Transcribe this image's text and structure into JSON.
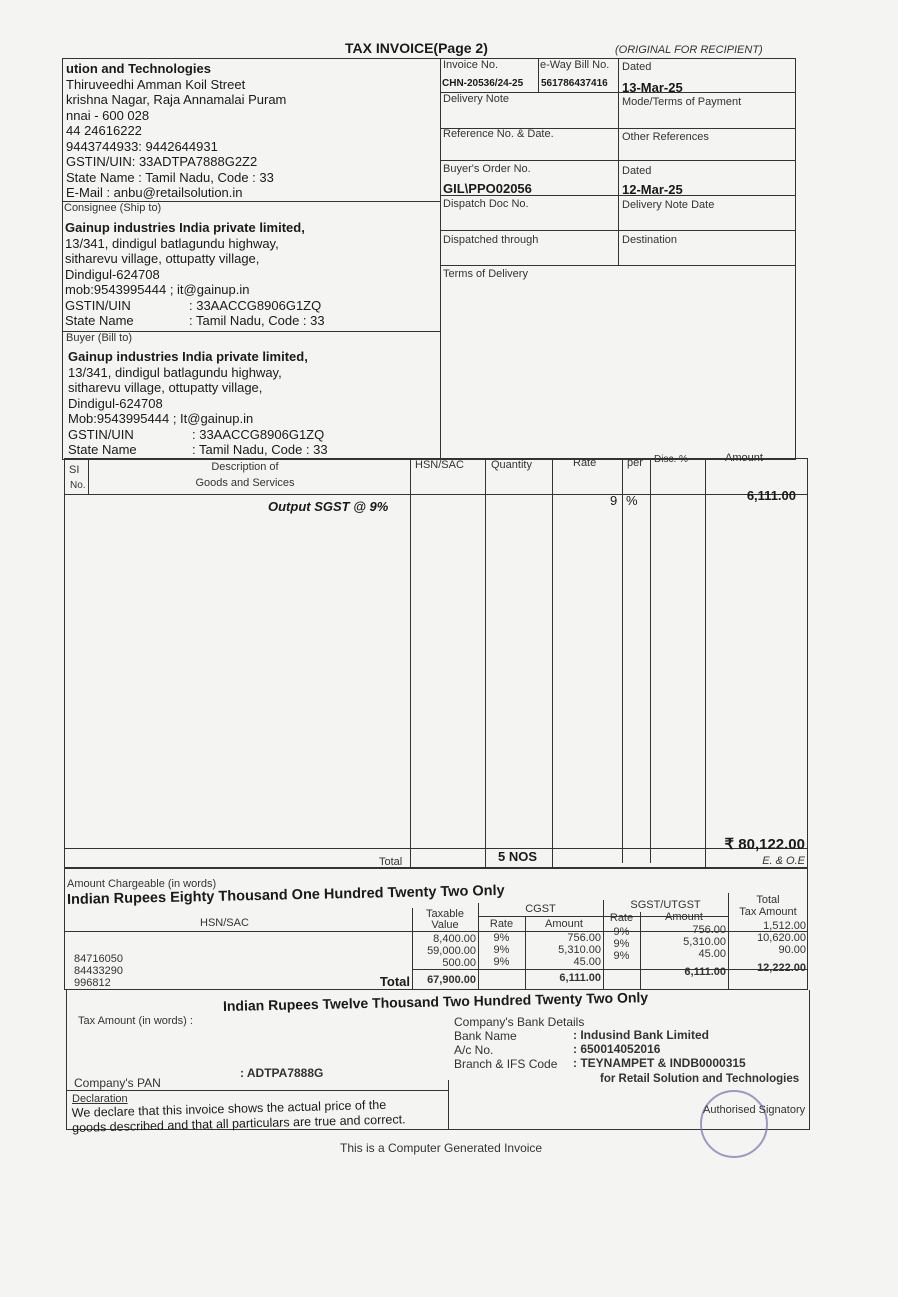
{
  "title": "TAX INVOICE(Page  2)",
  "copy_label": "(ORIGINAL FOR RECIPIENT)",
  "seller": {
    "lines": [
      "ution and Technologies",
      "Thiruveedhi Amman Koil Street",
      "krishna Nagar, Raja Annamalai Puram",
      "nnai - 600 028",
      "44 24616222",
      "9443744933: 9442644931",
      "GSTIN/UIN: 33ADTPA7888G2Z2",
      "State Name :  Tamil Nadu, Code : 33",
      "E-Mail : anbu@retailsolution.in"
    ]
  },
  "meta": {
    "invoice_no_label": "Invoice No.",
    "invoice_no": "CHN-20536/24-25",
    "eway_label": "e-Way Bill No.",
    "eway": "561786437416",
    "dated_label": "Dated",
    "dated": "13-Mar-25",
    "delivery_note_label": "Delivery Note",
    "mode_label": "Mode/Terms of Payment",
    "reference_label": "Reference No. & Date.",
    "other_ref_label": "Other References",
    "buyer_order_label": "Buyer's Order No.",
    "buyer_order": "GIL\\PPO02056",
    "order_dated_label": "Dated",
    "order_dated": "12-Mar-25",
    "dispatch_doc_label": "Dispatch Doc No.",
    "delivery_note_date_label": "Delivery Note Date",
    "dispatched_through_label": "Dispatched through",
    "destination_label": "Destination",
    "terms_label": "Terms of Delivery"
  },
  "consignee": {
    "label": "Consignee (Ship to)",
    "name": "Gainup industries India private limited,",
    "lines": [
      "13/341, dindigul batlagundu highway,",
      "sitharevu village, ottupatty village,",
      "Dindigul-624708",
      "mob:9543995444 ; it@gainup.in"
    ],
    "gstin_label": "GSTIN/UIN",
    "gstin": ": 33AACCG8906G1ZQ",
    "state_label": "State Name",
    "state": ": Tamil Nadu, Code : 33"
  },
  "buyer": {
    "label": "Buyer (Bill to)",
    "name": "Gainup industries India private limited,",
    "lines": [
      "13/341, dindigul batlagundu highway,",
      "sitharevu village, ottupatty village,",
      "Dindigul-624708",
      "Mob:9543995444 ; It@gainup.in"
    ],
    "gstin_label": "GSTIN/UIN",
    "gstin": ": 33AACCG8906G1ZQ",
    "state_label": "State Name",
    "state": ": Tamil Nadu, Code : 33"
  },
  "items": {
    "headers": {
      "si": "SI",
      "no": "No.",
      "desc1": "Description of",
      "desc2": "Goods and Services",
      "hsn": "HSN/SAC",
      "qty": "Quantity",
      "rate": "Rate",
      "per": "per",
      "disc": "Disc. %",
      "amount": "Amount"
    },
    "rows": [
      {
        "desc": "Output SGST @ 9%",
        "rate": "9",
        "per": "%",
        "amount": "6,111.00"
      }
    ],
    "total_label": "Total",
    "total_qty": "5 NOS",
    "total_amount": "₹ 80,122.00",
    "eoe": "E. & O.E"
  },
  "words": {
    "label": "Amount Chargeable (in words)",
    "value": "Indian Rupees Eighty Thousand One Hundred Twenty Two Only"
  },
  "tax": {
    "headers": {
      "hsn": "HSN/SAC",
      "taxable1": "Taxable",
      "taxable2": "Value",
      "cgst": "CGST",
      "sgst": "SGST/UTGST",
      "rate": "Rate",
      "amount": "Amount",
      "total1": "Total",
      "total2": "Tax Amount"
    },
    "rows": [
      {
        "hsn": "84716050",
        "taxable": "8,400.00",
        "cgst_rate": "9%",
        "cgst_amt": "756.00",
        "sgst_rate": "9%",
        "sgst_amt": "756.00",
        "total": "1,512.00"
      },
      {
        "hsn": "84433290",
        "taxable": "59,000.00",
        "cgst_rate": "9%",
        "cgst_amt": "5,310.00",
        "sgst_rate": "9%",
        "sgst_amt": "5,310.00",
        "total": "10,620.00"
      },
      {
        "hsn": "996812",
        "taxable": "500.00",
        "cgst_rate": "9%",
        "cgst_amt": "45.00",
        "sgst_rate": "9%",
        "sgst_amt": "45.00",
        "total": "90.00"
      }
    ],
    "total_label": "Total",
    "total_taxable": "67,900.00",
    "total_cgst": "6,111.00",
    "total_sgst": "6,111.00",
    "total_tax": "12,222.00"
  },
  "tax_words": {
    "label": "Tax Amount (in words) :",
    "value": "Indian Rupees Twelve Thousand Two Hundred Twenty Two Only"
  },
  "bank": {
    "title": "Company's Bank Details",
    "name_label": "Bank Name",
    "name": ": Indusind Bank Limited",
    "acc_label": "A/c No.",
    "acc": ": 650014052016",
    "branch_label": "Branch & IFS Code",
    "branch": ":  TEYNAMPET & INDB0000315"
  },
  "pan": {
    "label": "Company's PAN",
    "value": ":  ADTPA7888G"
  },
  "declaration": {
    "label": "Declaration",
    "text1": "We declare that this invoice shows the actual price of the",
    "text2": "goods described and that all particulars are true and correct."
  },
  "signatory": {
    "for": "for Retail Solution and Technologies",
    "label": "Authorised Signatory"
  },
  "footer": "This is a Computer Generated Invoice"
}
